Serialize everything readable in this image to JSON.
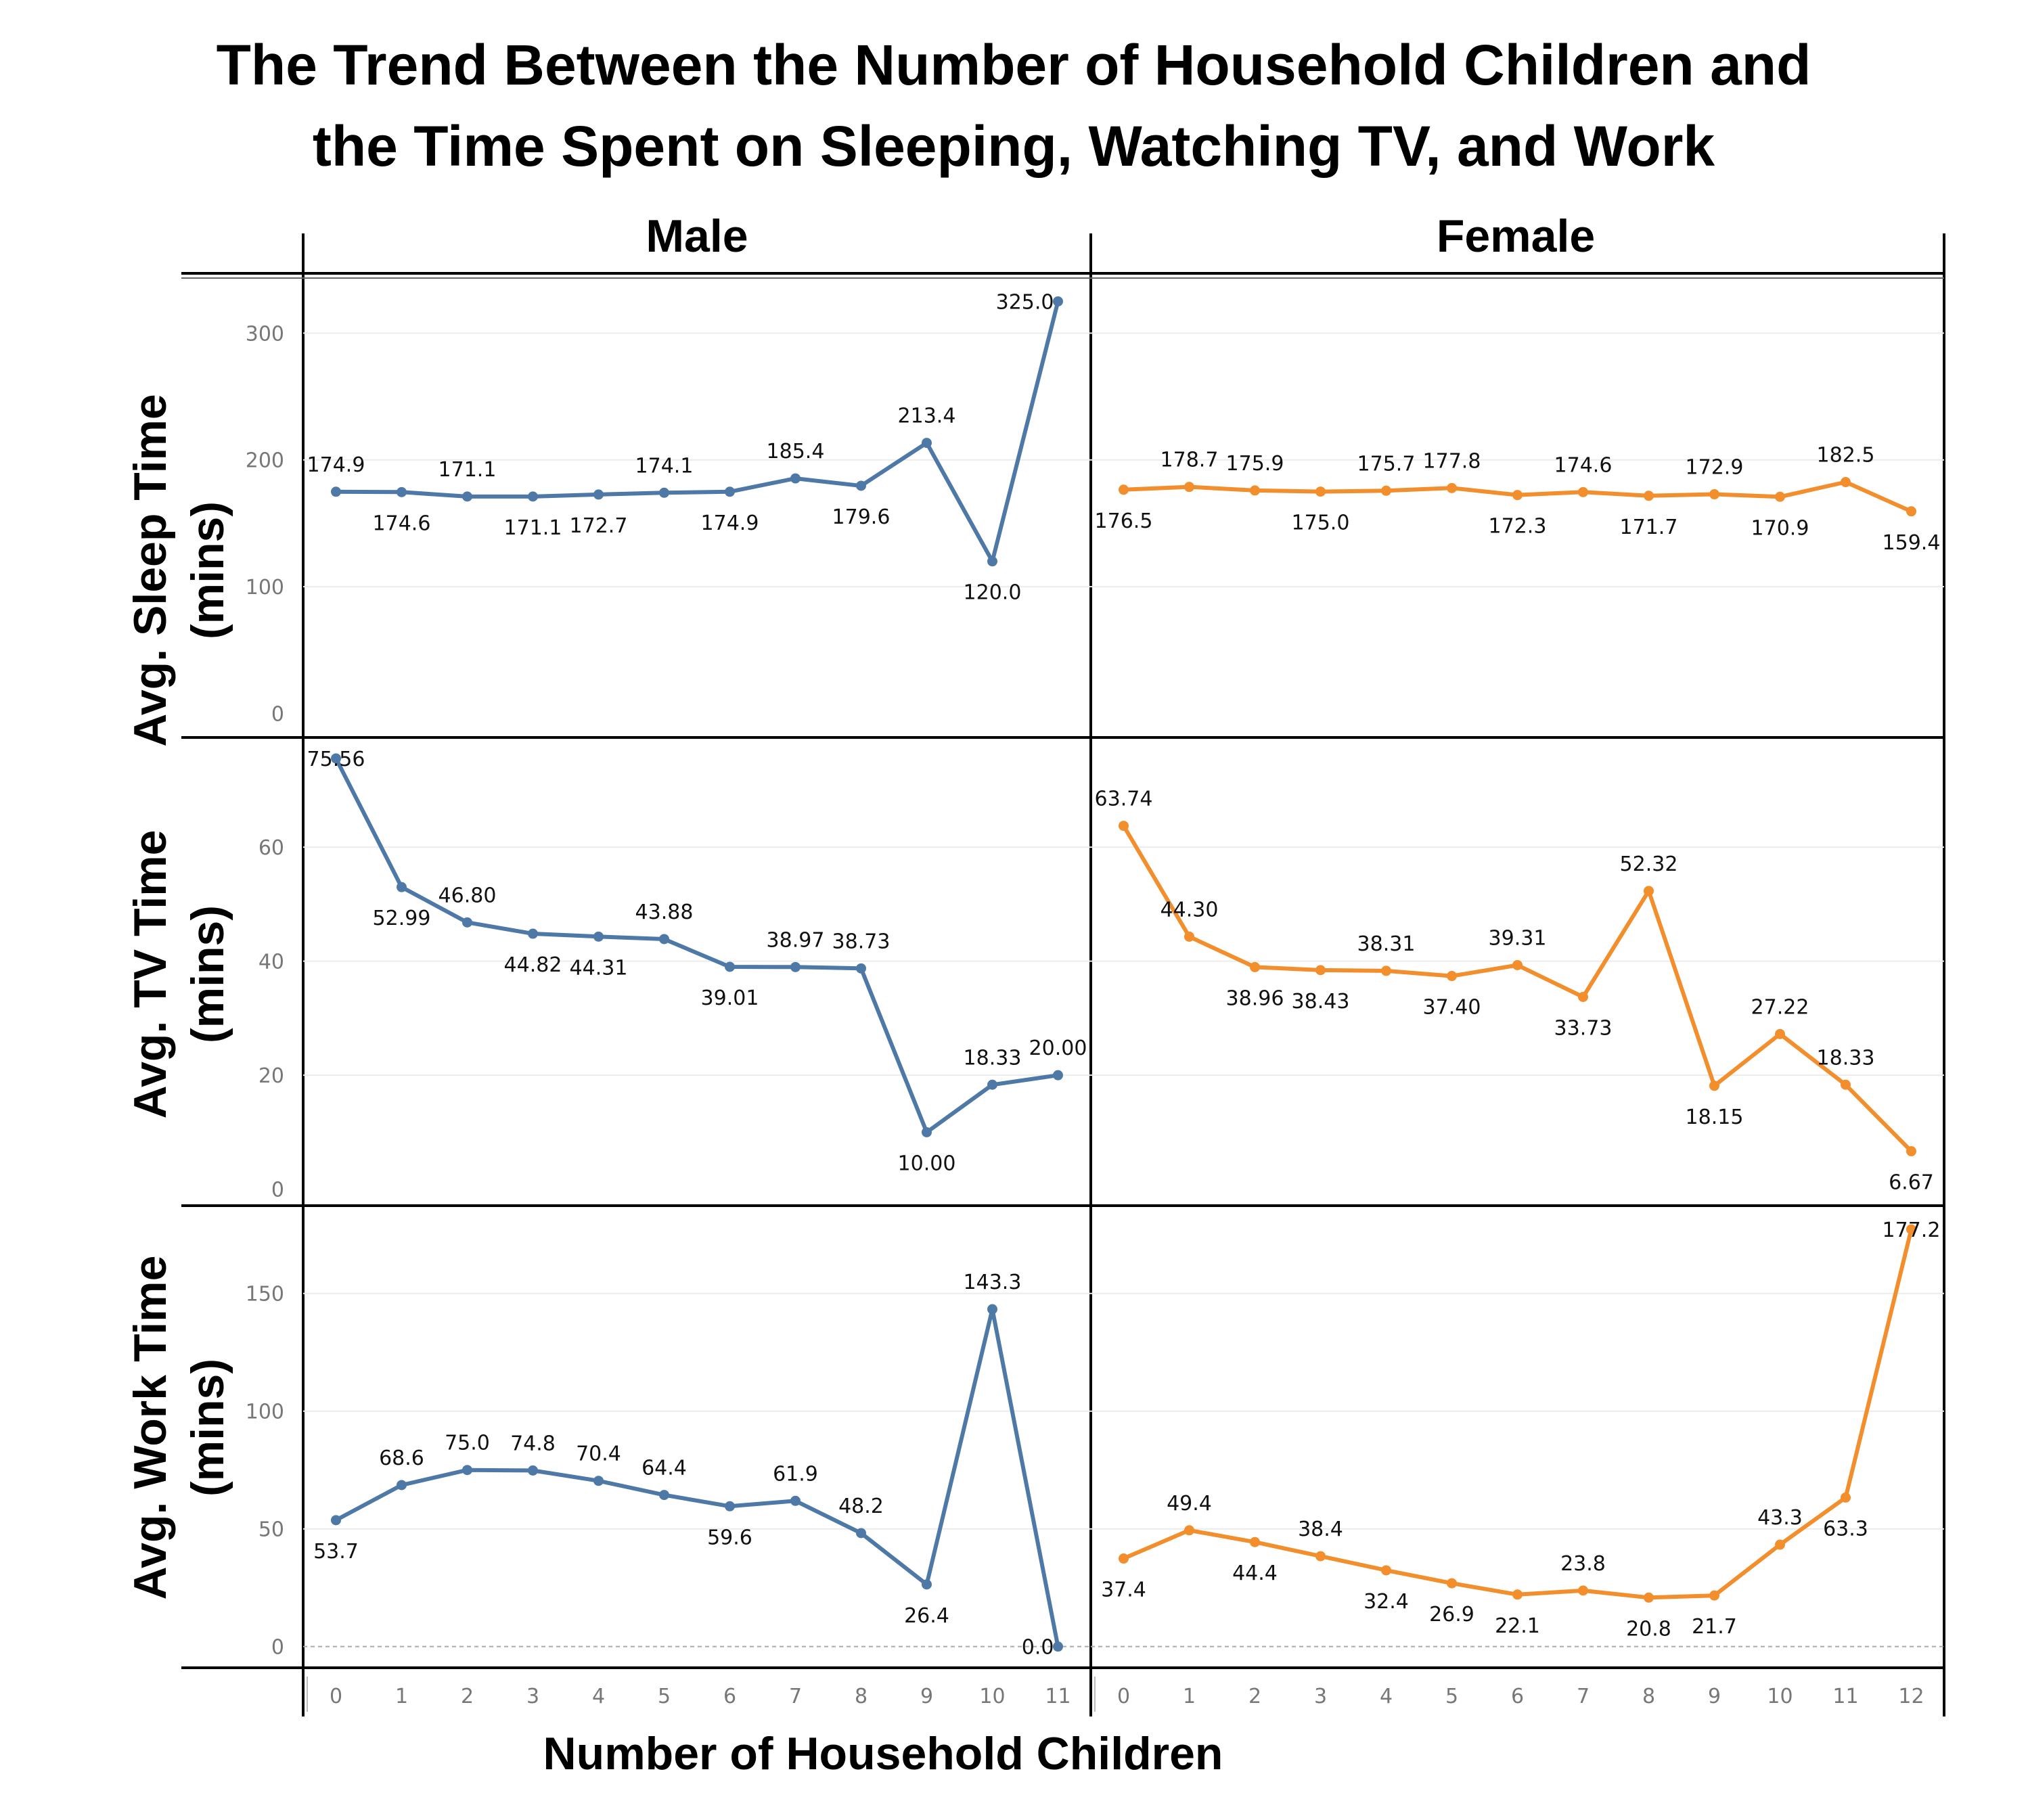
{
  "title_lines": [
    "The Trend Between the Number of Household Children and",
    "the Time Spent on Sleeping, Watching TV, and Work"
  ],
  "xlabel": "Number of Household Children",
  "columns": [
    "Male",
    "Female"
  ],
  "rows": [
    {
      "label": [
        "Avg. Sleep Time",
        "(mins)"
      ]
    },
    {
      "label": [
        "Avg. TV Time",
        "(mins)"
      ]
    },
    {
      "label": [
        "Avg. Work Time",
        "(mins)"
      ]
    }
  ],
  "colors": {
    "Male": "#4e79a7",
    "Female": "#f28e2b"
  },
  "chart_data": [
    {
      "type": "line",
      "panel": "Male / Avg. Sleep Time",
      "series_name": "Male",
      "x": [
        0,
        1,
        2,
        3,
        4,
        5,
        6,
        7,
        8,
        9,
        10,
        11
      ],
      "y": [
        174.9,
        174.6,
        171.1,
        171.1,
        172.7,
        174.1,
        174.9,
        185.4,
        179.6,
        213.4,
        120.0,
        325.0
      ],
      "labels": [
        "174.9",
        "174.6",
        "171.1",
        "171.1",
        "172.7",
        "174.1",
        "174.9",
        "185.4",
        "179.6",
        "213.4",
        "120.0",
        "325.0"
      ],
      "label_pos": [
        "above",
        "below",
        "above",
        "below",
        "below",
        "above",
        "below",
        "above",
        "below",
        "above",
        "below",
        "left"
      ],
      "yticks": [
        0,
        100,
        200,
        300
      ],
      "ylim": [
        -20,
        345
      ],
      "xlim": [
        -0.5,
        11.5
      ]
    },
    {
      "type": "line",
      "panel": "Female / Avg. Sleep Time",
      "series_name": "Female",
      "x": [
        0,
        1,
        2,
        3,
        4,
        5,
        6,
        7,
        8,
        9,
        10,
        11,
        12
      ],
      "y": [
        176.5,
        178.7,
        175.9,
        175.0,
        175.7,
        177.8,
        172.3,
        174.6,
        171.7,
        172.9,
        170.9,
        182.5,
        159.4
      ],
      "labels": [
        "176.5",
        "178.7",
        "175.9",
        "175.0",
        "175.7",
        "177.8",
        "172.3",
        "174.6",
        "171.7",
        "172.9",
        "170.9",
        "182.5",
        "159.4"
      ],
      "label_pos": [
        "below",
        "above",
        "above",
        "below",
        "above",
        "above",
        "below",
        "above",
        "below",
        "above",
        "below",
        "above",
        "below"
      ],
      "yticks": [
        0,
        100,
        200,
        300
      ],
      "ylim": [
        -20,
        345
      ],
      "xlim": [
        -0.5,
        12.5
      ]
    },
    {
      "type": "line",
      "panel": "Male / Avg. TV Time",
      "series_name": "Male",
      "x": [
        0,
        1,
        2,
        3,
        4,
        5,
        6,
        7,
        8,
        9,
        10,
        11
      ],
      "y": [
        75.56,
        52.99,
        46.8,
        44.82,
        44.31,
        43.88,
        39.01,
        38.97,
        38.73,
        10.0,
        18.33,
        20.0
      ],
      "labels": [
        "75.56",
        "52.99",
        "46.80",
        "44.82",
        "44.31",
        "43.88",
        "39.01",
        "38.97",
        "38.73",
        "10.00",
        "18.33",
        "20.00"
      ],
      "label_pos": [
        "at",
        "below",
        "above",
        "below",
        "below",
        "above",
        "below",
        "above",
        "above",
        "below",
        "above",
        "above"
      ],
      "yticks": [
        0,
        20,
        40,
        60
      ],
      "ylim": [
        -3,
        79
      ],
      "xlim": [
        -0.5,
        11.5
      ]
    },
    {
      "type": "line",
      "panel": "Female / Avg. TV Time",
      "series_name": "Female",
      "x": [
        0,
        1,
        2,
        3,
        4,
        5,
        6,
        7,
        8,
        9,
        10,
        11,
        12
      ],
      "y": [
        63.74,
        44.3,
        38.96,
        38.43,
        38.31,
        37.4,
        39.31,
        33.73,
        52.32,
        18.15,
        27.22,
        18.33,
        6.67
      ],
      "labels": [
        "63.74",
        "44.30",
        "38.96",
        "38.43",
        "38.31",
        "37.40",
        "39.31",
        "33.73",
        "52.32",
        "18.15",
        "27.22",
        "18.33",
        "6.67"
      ],
      "label_pos": [
        "above",
        "above",
        "below",
        "below",
        "above",
        "below",
        "above",
        "below",
        "above",
        "below",
        "above",
        "above",
        "below"
      ],
      "yticks": [
        0,
        20,
        40,
        60
      ],
      "ylim": [
        -3,
        79
      ],
      "xlim": [
        -0.5,
        12.5
      ]
    },
    {
      "type": "line",
      "panel": "Male / Avg. Work Time",
      "series_name": "Male",
      "x": [
        0,
        1,
        2,
        3,
        4,
        5,
        6,
        7,
        8,
        9,
        10,
        11
      ],
      "y": [
        53.7,
        68.6,
        75.0,
        74.8,
        70.4,
        64.4,
        59.6,
        61.9,
        48.2,
        26.4,
        143.3,
        0.0
      ],
      "labels": [
        "53.7",
        "68.6",
        "75.0",
        "74.8",
        "70.4",
        "64.4",
        "59.6",
        "61.9",
        "48.2",
        "26.4",
        "143.3",
        "0.0"
      ],
      "label_pos": [
        "below",
        "above",
        "above",
        "above",
        "above",
        "above",
        "below",
        "above",
        "above",
        "below",
        "above",
        "left"
      ],
      "yticks": [
        0,
        50,
        100,
        150
      ],
      "ylim": [
        -9,
        187
      ],
      "xlim": [
        -0.5,
        11.5
      ]
    },
    {
      "type": "line",
      "panel": "Female / Avg. Work Time",
      "series_name": "Female",
      "x": [
        0,
        1,
        2,
        3,
        4,
        5,
        6,
        7,
        8,
        9,
        10,
        11,
        12
      ],
      "y": [
        37.4,
        49.4,
        44.4,
        38.4,
        32.4,
        26.9,
        22.1,
        23.8,
        20.8,
        21.7,
        43.3,
        63.3,
        177.2
      ],
      "labels": [
        "37.4",
        "49.4",
        "44.4",
        "38.4",
        "32.4",
        "26.9",
        "22.1",
        "23.8",
        "20.8",
        "21.7",
        "43.3",
        "63.3",
        "177.2"
      ],
      "label_pos": [
        "below",
        "above",
        "below",
        "above",
        "below",
        "below",
        "below",
        "above",
        "below",
        "below",
        "above",
        "below",
        "at"
      ],
      "yticks": [
        0,
        50,
        100,
        150
      ],
      "ylim": [
        -9,
        187
      ],
      "xlim": [
        -0.5,
        12.5
      ]
    }
  ]
}
